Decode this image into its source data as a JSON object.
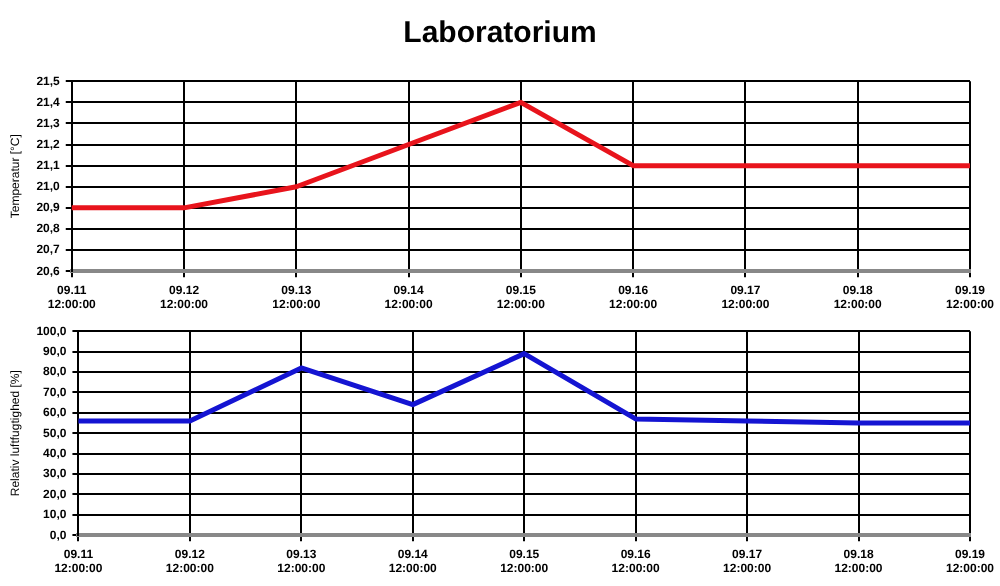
{
  "chart_data": [
    {
      "type": "line",
      "title": "Laboratorium",
      "ylabel": "Temperatur [°C]",
      "categories": [
        "09.11\n12:00:00",
        "09.12\n12:00:00",
        "09.13\n12:00:00",
        "09.14\n12:00:00",
        "09.15\n12:00:00",
        "09.16\n12:00:00",
        "09.17\n12:00:00",
        "09.18\n12:00:00",
        "09.19\n12:00:00"
      ],
      "series": [
        {
          "color": "#e8141c",
          "values": [
            20.9,
            20.9,
            21.0,
            21.2,
            21.4,
            21.1,
            21.1,
            21.1,
            21.1
          ]
        }
      ],
      "ylim": [
        20.6,
        21.5
      ],
      "yticks": [
        {
          "value": 20.6,
          "label": "20,6"
        },
        {
          "value": 20.7,
          "label": "20,7"
        },
        {
          "value": 20.8,
          "label": "20,8"
        },
        {
          "value": 20.9,
          "label": "20,9"
        },
        {
          "value": 21.0,
          "label": "21,0"
        },
        {
          "value": 21.1,
          "label": "21,1"
        },
        {
          "value": 21.2,
          "label": "21,2"
        },
        {
          "value": 21.3,
          "label": "21,3"
        },
        {
          "value": 21.4,
          "label": "21,4"
        },
        {
          "value": 21.5,
          "label": "21,5"
        }
      ],
      "grid": true,
      "legend": false,
      "marker": "none",
      "line_style": "solid"
    },
    {
      "type": "line",
      "ylabel": "Relativ luftfugtighed [%]",
      "categories": [
        "09.11\n12:00:00",
        "09.12\n12:00:00",
        "09.13\n12:00:00",
        "09.14\n12:00:00",
        "09.15\n12:00:00",
        "09.16\n12:00:00",
        "09.17\n12:00:00",
        "09.18\n12:00:00",
        "09.19\n12:00:00"
      ],
      "series": [
        {
          "color": "#1414d2",
          "values": [
            56,
            56,
            82,
            64,
            89,
            57,
            56,
            55,
            55
          ]
        }
      ],
      "ylim": [
        0,
        100
      ],
      "yticks": [
        {
          "value": 0,
          "label": "0,0"
        },
        {
          "value": 10,
          "label": "10,0"
        },
        {
          "value": 20,
          "label": "20,0"
        },
        {
          "value": 30,
          "label": "30,0"
        },
        {
          "value": 40,
          "label": "40,0"
        },
        {
          "value": 50,
          "label": "50,0"
        },
        {
          "value": 60,
          "label": "60,0"
        },
        {
          "value": 70,
          "label": "70,0"
        },
        {
          "value": 80,
          "label": "80,0"
        },
        {
          "value": 90,
          "label": "90,0"
        },
        {
          "value": 100,
          "label": "100,0"
        }
      ],
      "grid": true,
      "legend": false,
      "marker": "none",
      "line_style": "solid"
    }
  ]
}
